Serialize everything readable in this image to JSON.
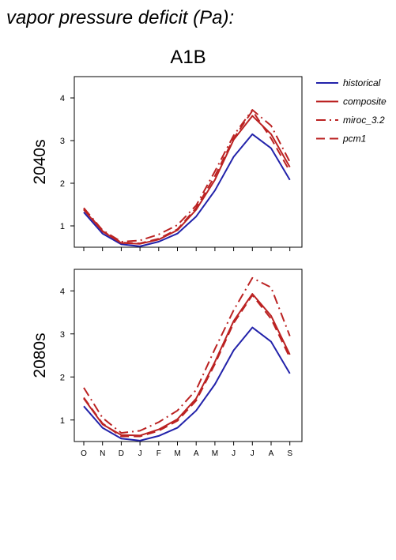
{
  "figure": {
    "title": "vapor pressure deficit (Pa):",
    "scenario": "A1B"
  },
  "legend": {
    "placement": "top-right",
    "entries": [
      {
        "name": "historical",
        "color": "#2222aa",
        "dash": "solid"
      },
      {
        "name": "composite",
        "color": "#bb2222",
        "dash": "solid"
      },
      {
        "name": "miroc_3.2",
        "color": "#bb2222",
        "dash": "dashdot"
      },
      {
        "name": "pcm1",
        "color": "#bb2222",
        "dash": "dashed"
      }
    ]
  },
  "chart_data": [
    {
      "type": "line",
      "ylabel": "2040s",
      "categories": [
        "O",
        "N",
        "D",
        "J",
        "F",
        "M",
        "A",
        "M",
        "J",
        "J",
        "A",
        "S"
      ],
      "ylim": [
        0.5,
        4.5
      ],
      "yticks": [
        1,
        2,
        3,
        4
      ],
      "grid": false,
      "series": [
        {
          "name": "historical",
          "values": [
            1.32,
            0.82,
            0.57,
            0.52,
            0.63,
            0.82,
            1.22,
            1.83,
            2.62,
            3.15,
            2.82,
            2.08
          ]
        },
        {
          "name": "composite",
          "values": [
            1.38,
            0.87,
            0.6,
            0.58,
            0.68,
            0.9,
            1.38,
            2.08,
            3.02,
            3.58,
            3.15,
            2.38
          ]
        },
        {
          "name": "miroc_3.2",
          "values": [
            1.42,
            0.9,
            0.63,
            0.66,
            0.8,
            1.02,
            1.48,
            2.28,
            3.12,
            3.72,
            3.35,
            2.5
          ]
        },
        {
          "name": "pcm1",
          "values": [
            1.4,
            0.88,
            0.61,
            0.59,
            0.7,
            0.92,
            1.42,
            2.17,
            3.05,
            3.7,
            3.05,
            2.28
          ]
        }
      ]
    },
    {
      "type": "line",
      "ylabel": "2080s",
      "categories": [
        "O",
        "N",
        "D",
        "J",
        "F",
        "M",
        "A",
        "M",
        "J",
        "J",
        "A",
        "S"
      ],
      "ylim": [
        0.5,
        4.5
      ],
      "yticks": [
        1,
        2,
        3,
        4
      ],
      "grid": false,
      "series": [
        {
          "name": "historical",
          "values": [
            1.32,
            0.82,
            0.57,
            0.52,
            0.63,
            0.82,
            1.22,
            1.83,
            2.62,
            3.15,
            2.82,
            2.08
          ]
        },
        {
          "name": "composite",
          "values": [
            1.5,
            0.9,
            0.65,
            0.64,
            0.78,
            1.02,
            1.5,
            2.35,
            3.3,
            3.93,
            3.42,
            2.52
          ]
        },
        {
          "name": "miroc_3.2",
          "values": [
            1.75,
            1.05,
            0.7,
            0.75,
            0.95,
            1.22,
            1.7,
            2.65,
            3.55,
            4.3,
            4.08,
            2.95
          ]
        },
        {
          "name": "pcm1",
          "values": [
            1.52,
            0.92,
            0.62,
            0.62,
            0.75,
            0.98,
            1.45,
            2.3,
            3.25,
            3.9,
            3.35,
            2.45
          ]
        }
      ]
    }
  ]
}
